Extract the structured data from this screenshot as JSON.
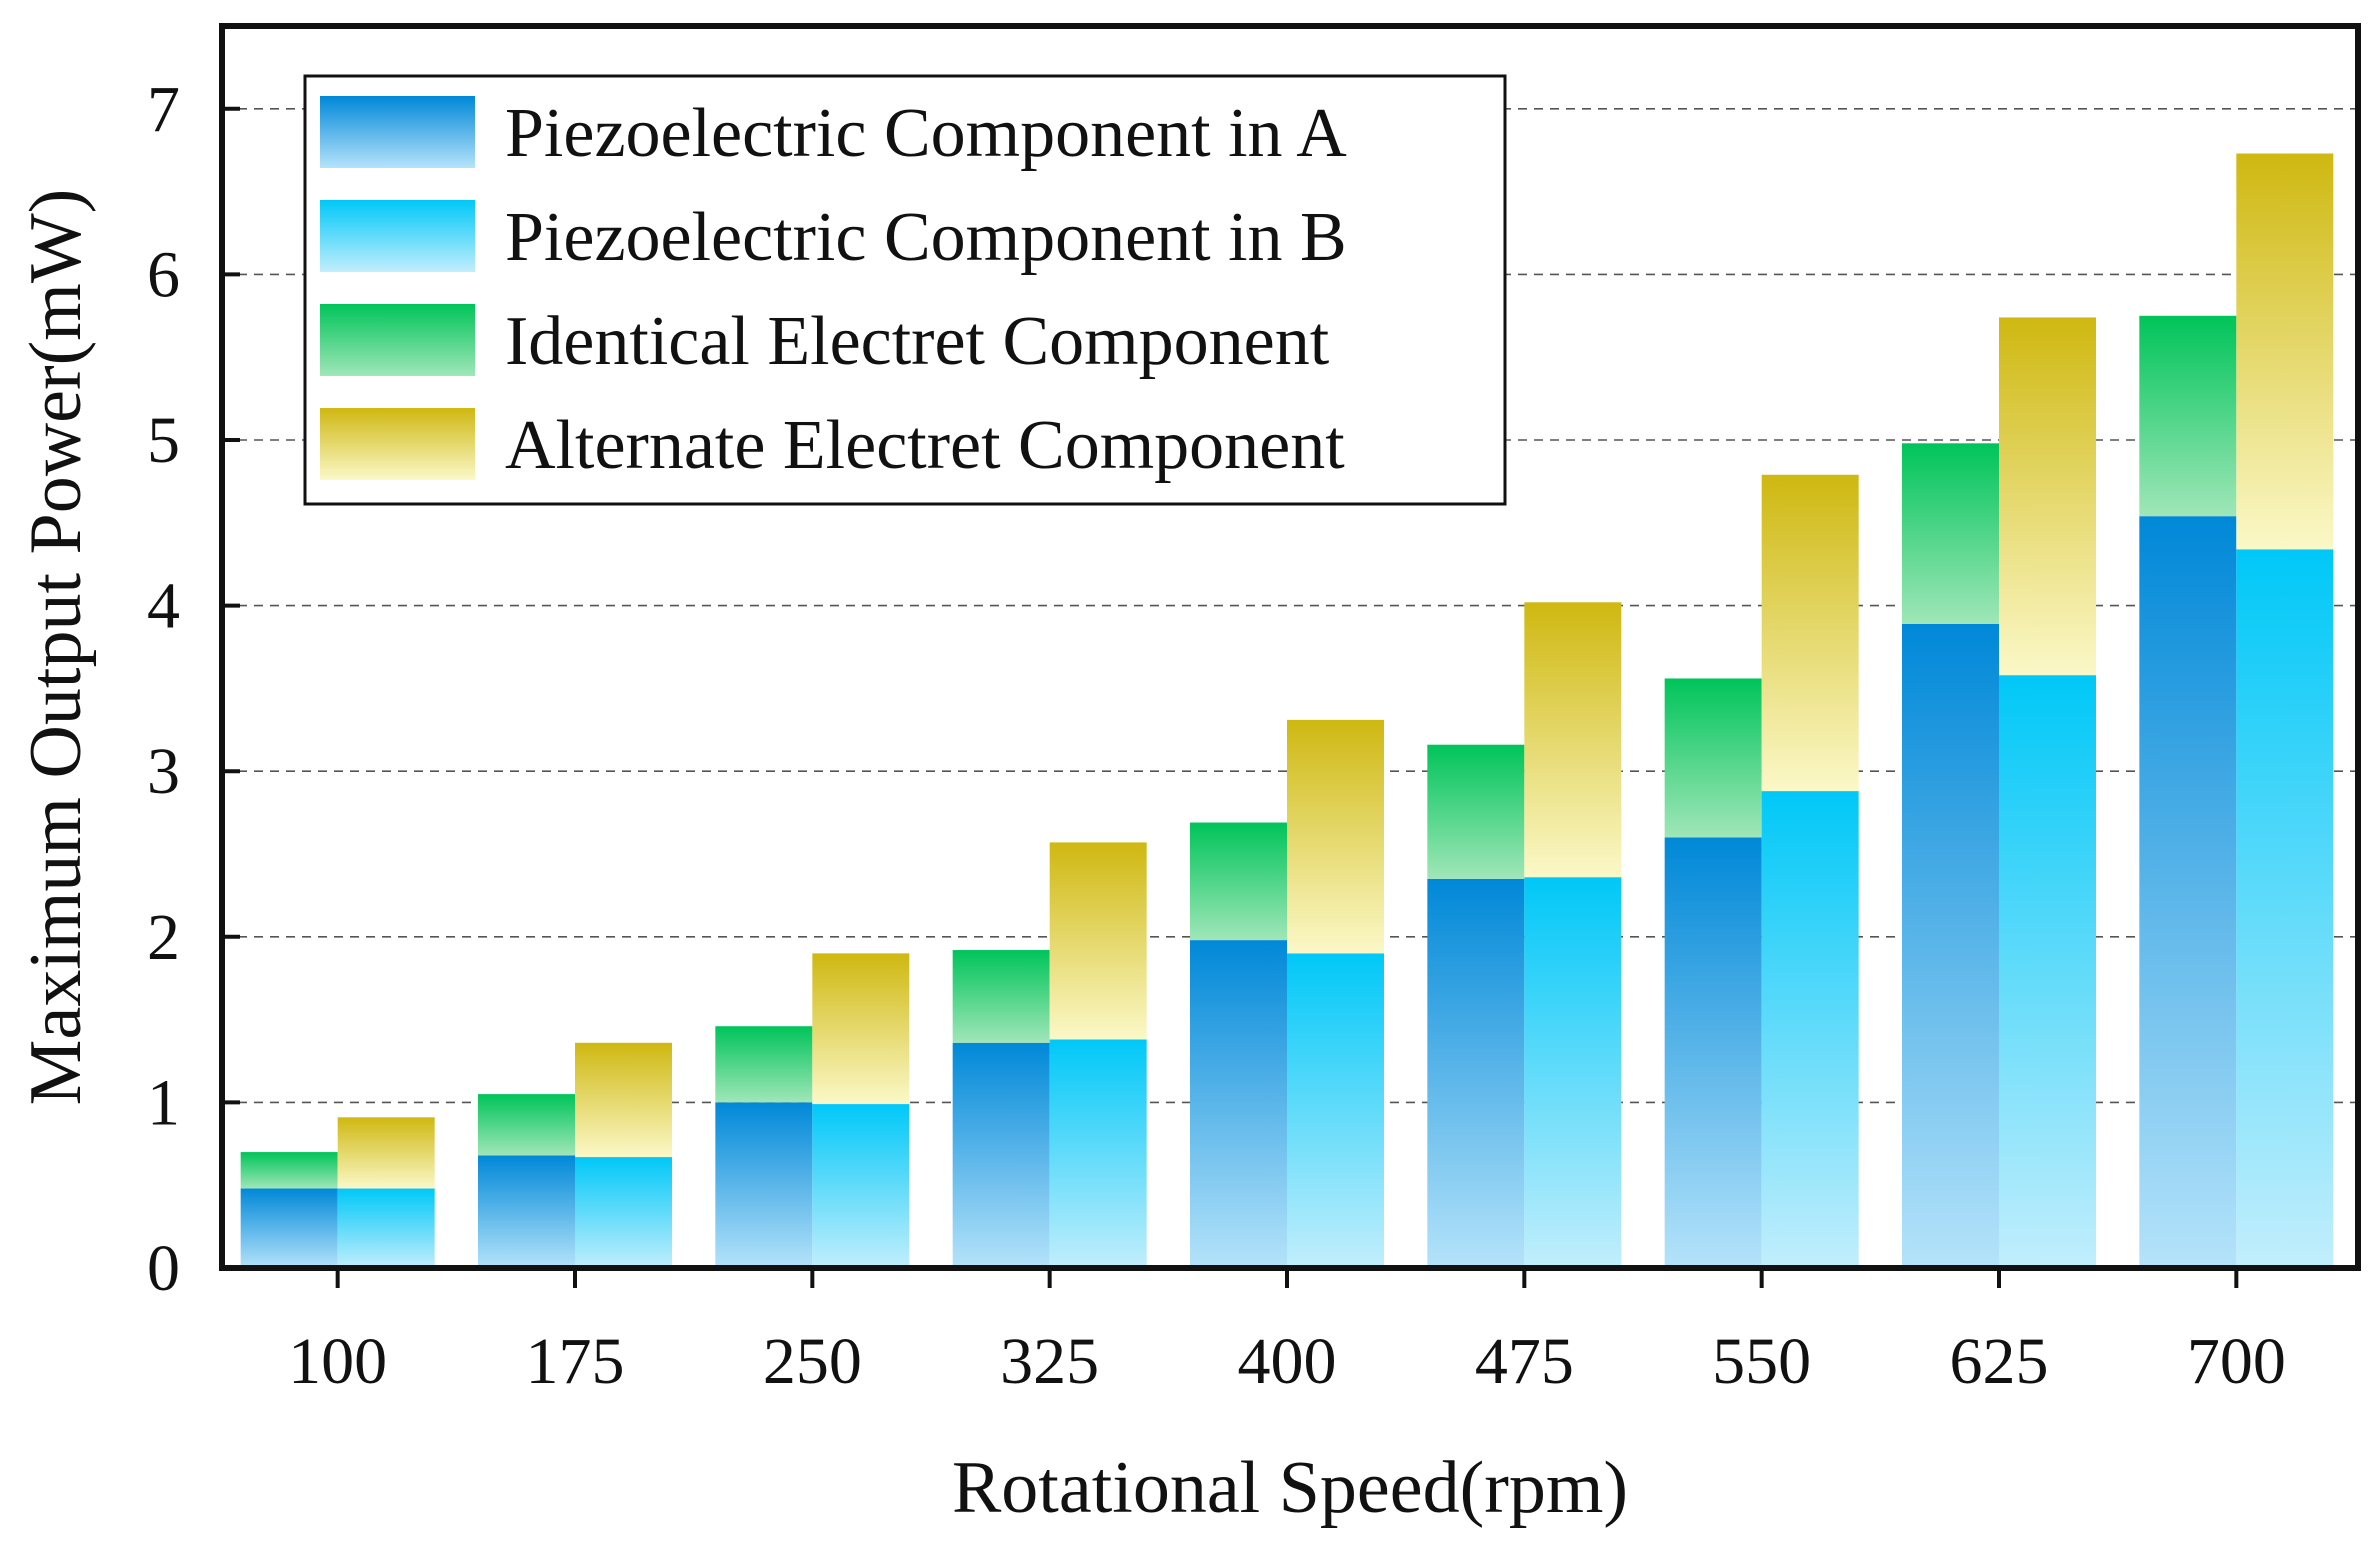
{
  "chart_data": {
    "type": "bar",
    "subtype": "grouped-stacked",
    "title": "",
    "xlabel": "Rotational Speed(rpm)",
    "ylabel": "Maximum Output Power(mW)",
    "ylim": [
      0,
      7.5
    ],
    "yticks": [
      "0",
      "1",
      "2",
      "3",
      "4",
      "5",
      "6",
      "7"
    ],
    "grid": "horizontal-dashed",
    "legend_position": "top-left",
    "categories": [
      "100",
      "175",
      "250",
      "325",
      "400",
      "475",
      "550",
      "625",
      "700"
    ],
    "groups": [
      {
        "name": "A",
        "series": [
          {
            "name": "Piezoelectric Component in A",
            "values": [
              0.48,
              0.68,
              1.0,
              1.36,
              1.98,
              2.35,
              2.6,
              3.89,
              4.54
            ]
          },
          {
            "name": "Identical Electret Component",
            "values": [
              0.22,
              0.37,
              0.46,
              0.56,
              0.71,
              0.81,
              0.96,
              1.09,
              1.21
            ]
          }
        ],
        "totals": [
          0.7,
          1.05,
          1.46,
          1.92,
          2.69,
          3.16,
          3.56,
          4.98,
          5.75
        ]
      },
      {
        "name": "B",
        "series": [
          {
            "name": "Piezoelectric Component in B",
            "values": [
              0.48,
              0.67,
              0.99,
              1.38,
              1.9,
              2.36,
              2.88,
              3.58,
              4.34
            ]
          },
          {
            "name": "Alternate Electret Component",
            "values": [
              0.43,
              0.69,
              0.91,
              1.19,
              1.41,
              1.66,
              1.91,
              2.16,
              2.39
            ]
          }
        ],
        "totals": [
          0.91,
          1.36,
          1.9,
          2.57,
          3.31,
          4.02,
          4.79,
          5.74,
          6.73
        ]
      }
    ],
    "legend": [
      {
        "label": "Piezoelectric Component in A",
        "color_top": "#0088d8",
        "color_bottom": "#b5e3fa"
      },
      {
        "label": "Piezoelectric Component in B",
        "color_top": "#00c8f8",
        "color_bottom": "#c2eefc"
      },
      {
        "label": "Identical Electret Component",
        "color_top": "#00c45a",
        "color_bottom": "#a0e6b8"
      },
      {
        "label": "Alternate Electret Component",
        "color_top": "#cfb811",
        "color_bottom": "#fbf8c8"
      }
    ]
  }
}
